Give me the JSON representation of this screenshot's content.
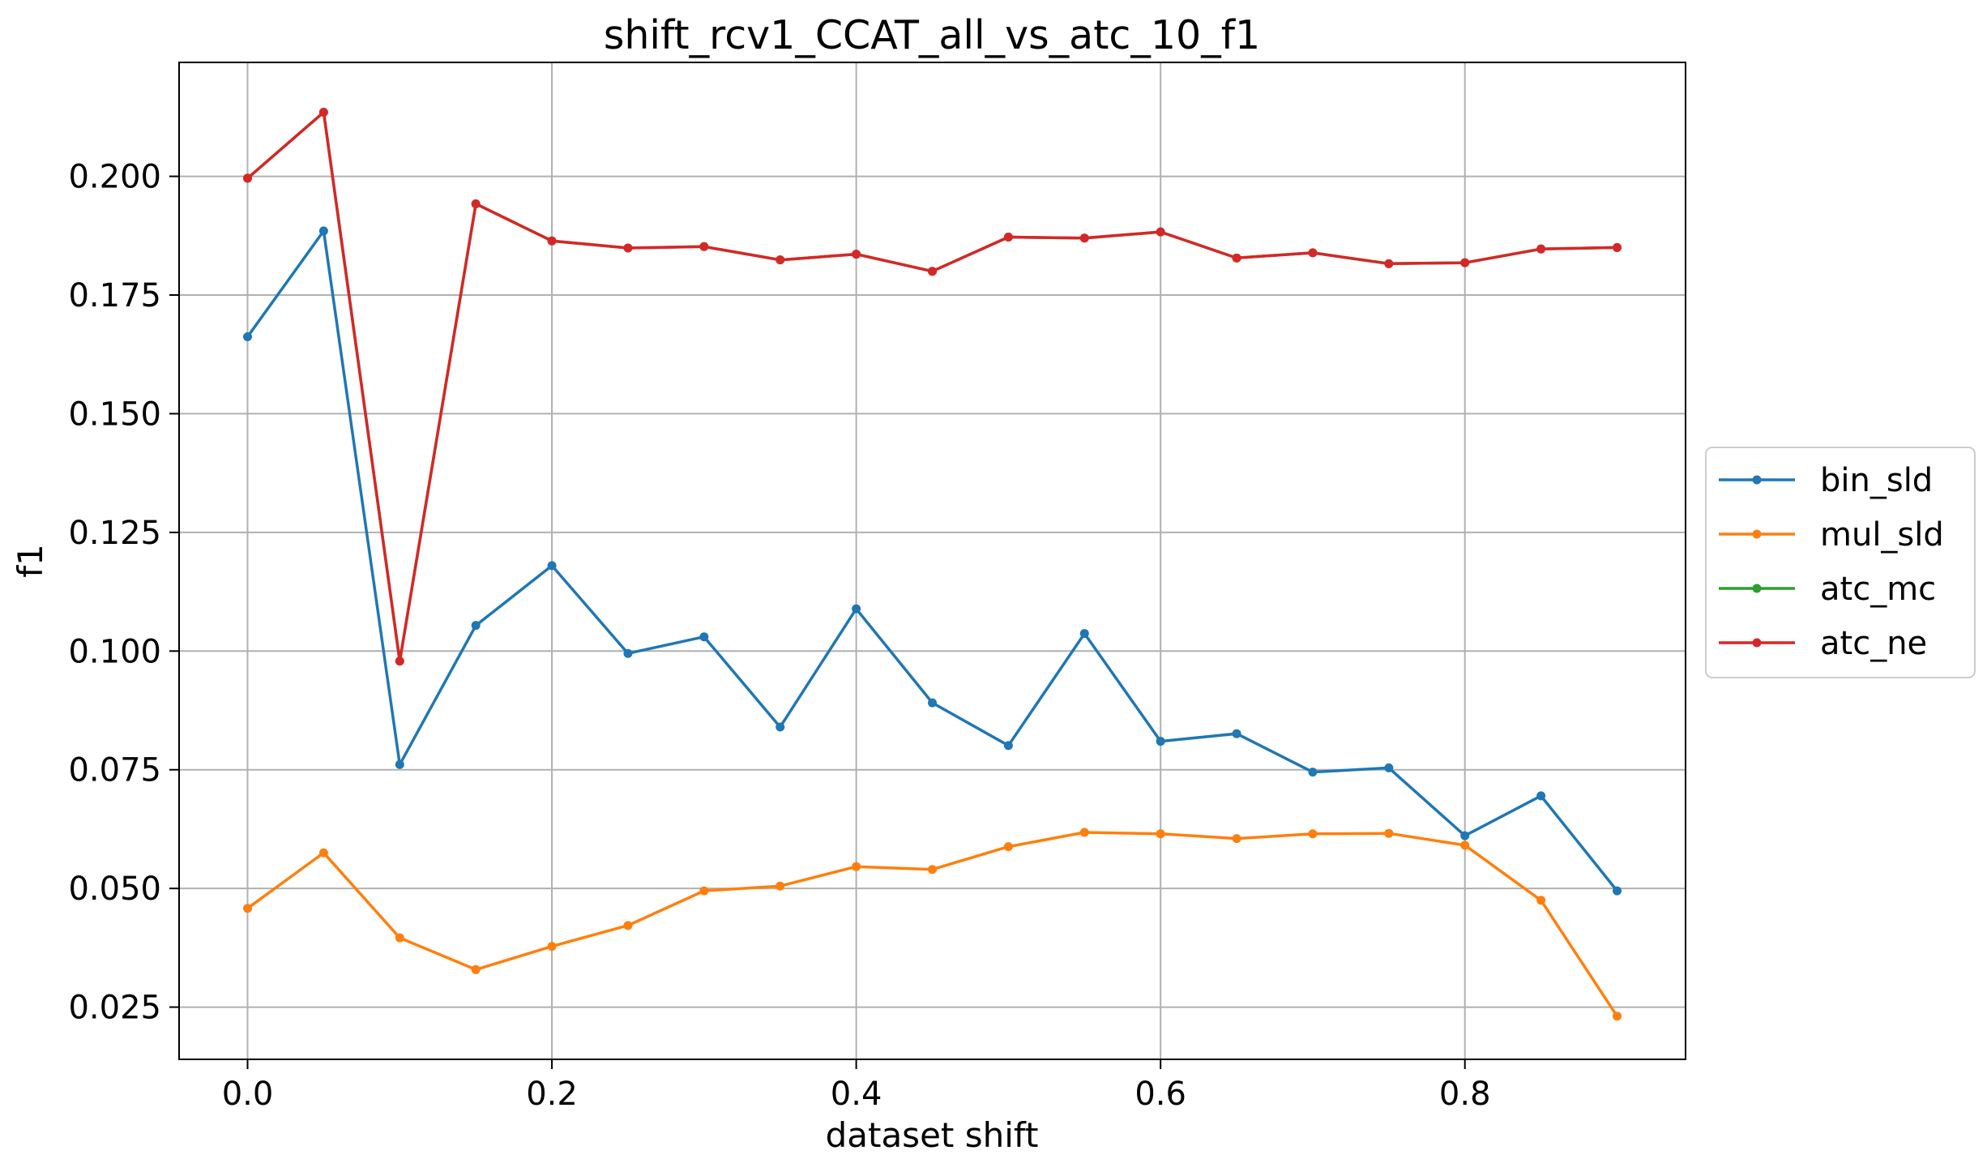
{
  "chart_data": {
    "type": "line",
    "title": "shift_rcv1_CCAT_all_vs_atc_10_f1",
    "xlabel": "dataset shift",
    "ylabel": "f1",
    "xlim": [
      -0.045,
      0.945
    ],
    "ylim": [
      0.014,
      0.224
    ],
    "x_ticks": [
      0.0,
      0.2,
      0.4,
      0.6,
      0.8
    ],
    "x_tick_labels": [
      "0.0",
      "0.2",
      "0.4",
      "0.6",
      "0.8"
    ],
    "y_ticks": [
      0.025,
      0.05,
      0.075,
      0.1,
      0.125,
      0.15,
      0.175,
      0.2
    ],
    "y_tick_labels": [
      "0.025",
      "0.050",
      "0.075",
      "0.100",
      "0.125",
      "0.150",
      "0.175",
      "0.200"
    ],
    "grid": true,
    "legend_position": "center-right-outside",
    "x": [
      0.0,
      0.05,
      0.1,
      0.15,
      0.2,
      0.25,
      0.3,
      0.35,
      0.4,
      0.45,
      0.5,
      0.55,
      0.6,
      0.65,
      0.7,
      0.75,
      0.8,
      0.85,
      0.9
    ],
    "series": [
      {
        "name": "bin_sld",
        "color": "#1f77b4",
        "values": [
          0.1662,
          0.1885,
          0.0761,
          0.1054,
          0.118,
          0.0995,
          0.103,
          0.084,
          0.1089,
          0.0891,
          0.0801,
          0.1037,
          0.081,
          0.0826,
          0.0745,
          0.0754,
          0.0611,
          0.0695,
          0.0495
        ]
      },
      {
        "name": "mul_sld",
        "color": "#ff7f0e",
        "values": [
          0.0458,
          0.0575,
          0.0396,
          0.0329,
          0.0378,
          0.0422,
          0.0495,
          0.0505,
          0.0546,
          0.054,
          0.0588,
          0.0618,
          0.0615,
          0.0605,
          0.0615,
          0.0616,
          0.0591,
          0.0475,
          0.0231
        ]
      },
      {
        "name": "atc_mc",
        "color": "#2ca02c",
        "values": [
          0.1996,
          0.2135,
          0.0979,
          0.1942,
          0.1864,
          0.1849,
          0.1852,
          0.1824,
          0.1836,
          0.18,
          0.1872,
          0.187,
          0.1883,
          0.1828,
          0.1839,
          0.1816,
          0.1818,
          0.1847,
          0.185
        ]
      },
      {
        "name": "atc_ne",
        "color": "#d62728",
        "values": [
          0.1996,
          0.2135,
          0.0979,
          0.1942,
          0.1864,
          0.1849,
          0.1852,
          0.1824,
          0.1836,
          0.18,
          0.1872,
          0.187,
          0.1883,
          0.1828,
          0.1839,
          0.1816,
          0.1818,
          0.1847,
          0.185
        ]
      }
    ]
  }
}
